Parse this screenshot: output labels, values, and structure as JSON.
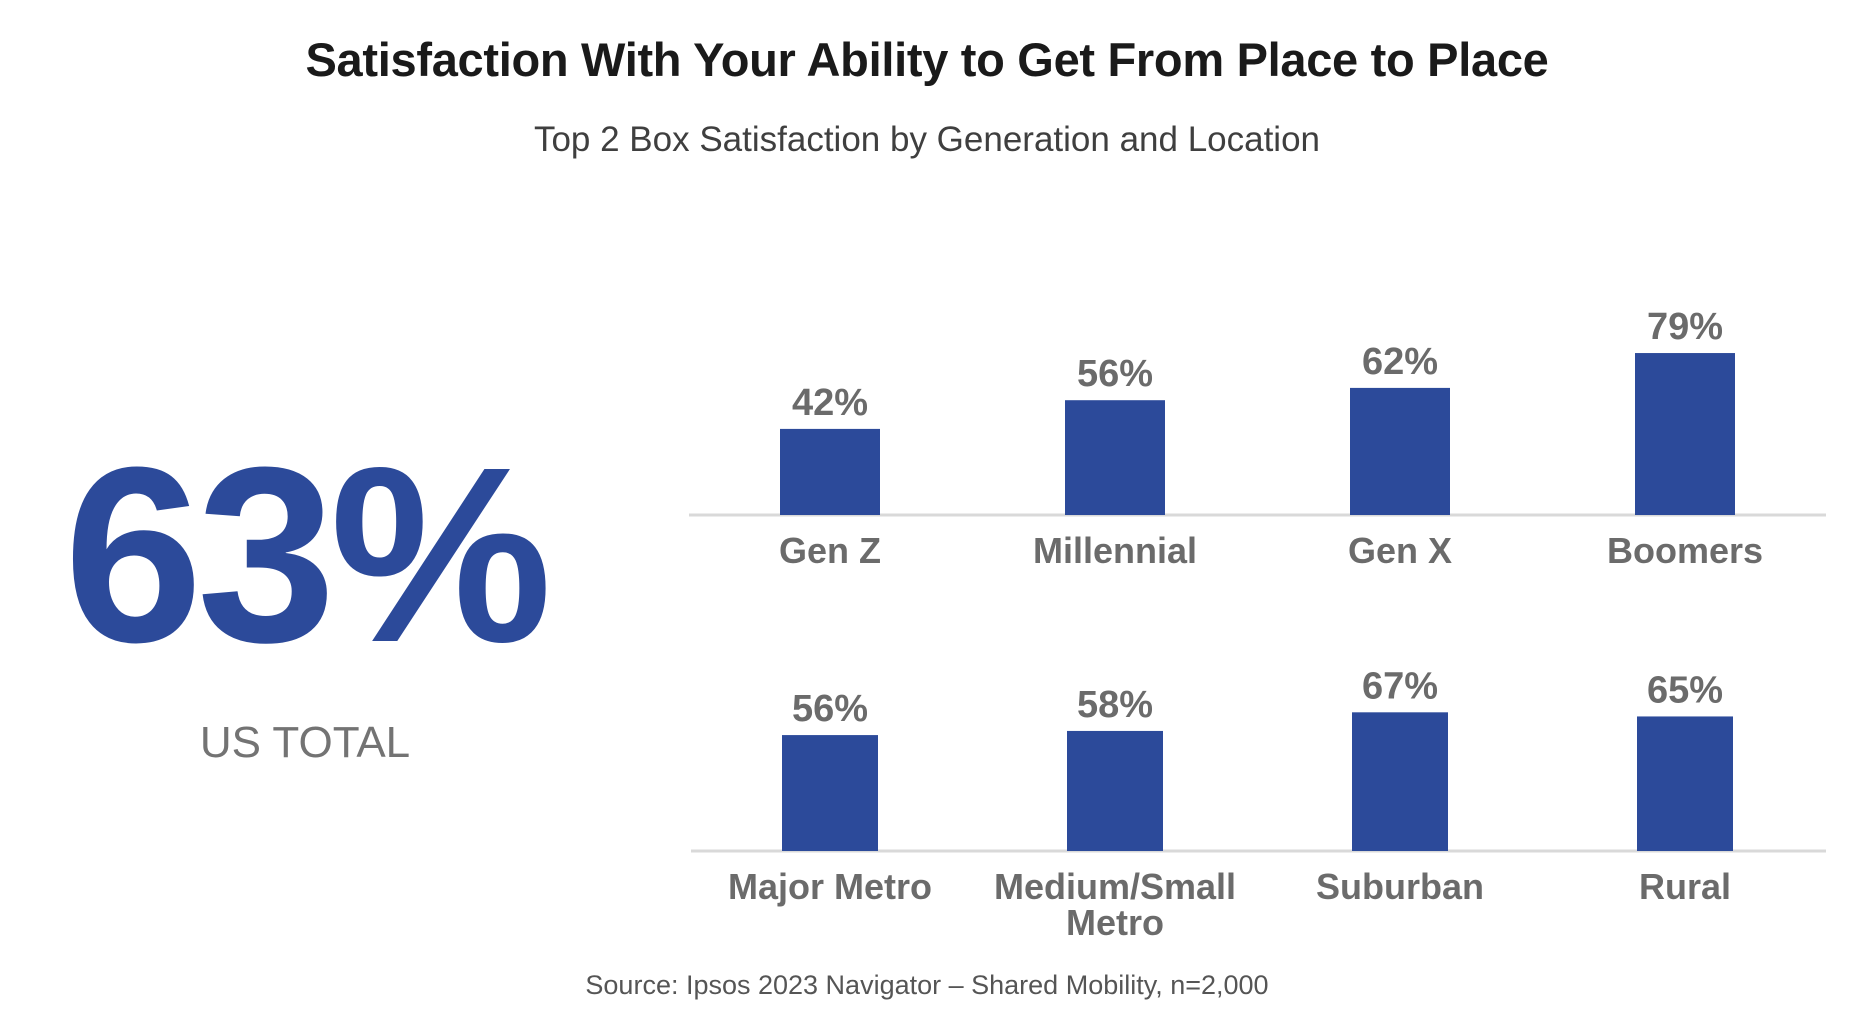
{
  "title": "Satisfaction With Your Ability to Get From Place to Place",
  "subtitle": "Top 2 Box Satisfaction by Generation and Location",
  "total": {
    "value": "63%",
    "label": "US TOTAL"
  },
  "source": "Source: Ipsos 2023 Navigator – Shared Mobility, n=2,000",
  "colors": {
    "bar": "#2c4a9a",
    "axis": "#d9d9d9",
    "label": "#6b6b6b",
    "big_number": "#2c4a9a"
  },
  "chart_data": [
    {
      "type": "bar",
      "categories": [
        "Gen Z",
        "Millennial",
        "Gen X",
        "Boomers"
      ],
      "values": [
        42,
        56,
        62,
        79
      ],
      "data_labels": [
        "42%",
        "56%",
        "62%",
        "79%"
      ],
      "ylim": [
        0,
        100
      ],
      "grid": false
    },
    {
      "type": "bar",
      "categories": [
        "Major Metro",
        [
          "Medium/Small",
          "Metro"
        ],
        "Suburban",
        "Rural"
      ],
      "values": [
        56,
        58,
        67,
        65
      ],
      "data_labels": [
        "56%",
        "58%",
        "67%",
        "65%"
      ],
      "ylim": [
        0,
        100
      ],
      "grid": false
    }
  ]
}
